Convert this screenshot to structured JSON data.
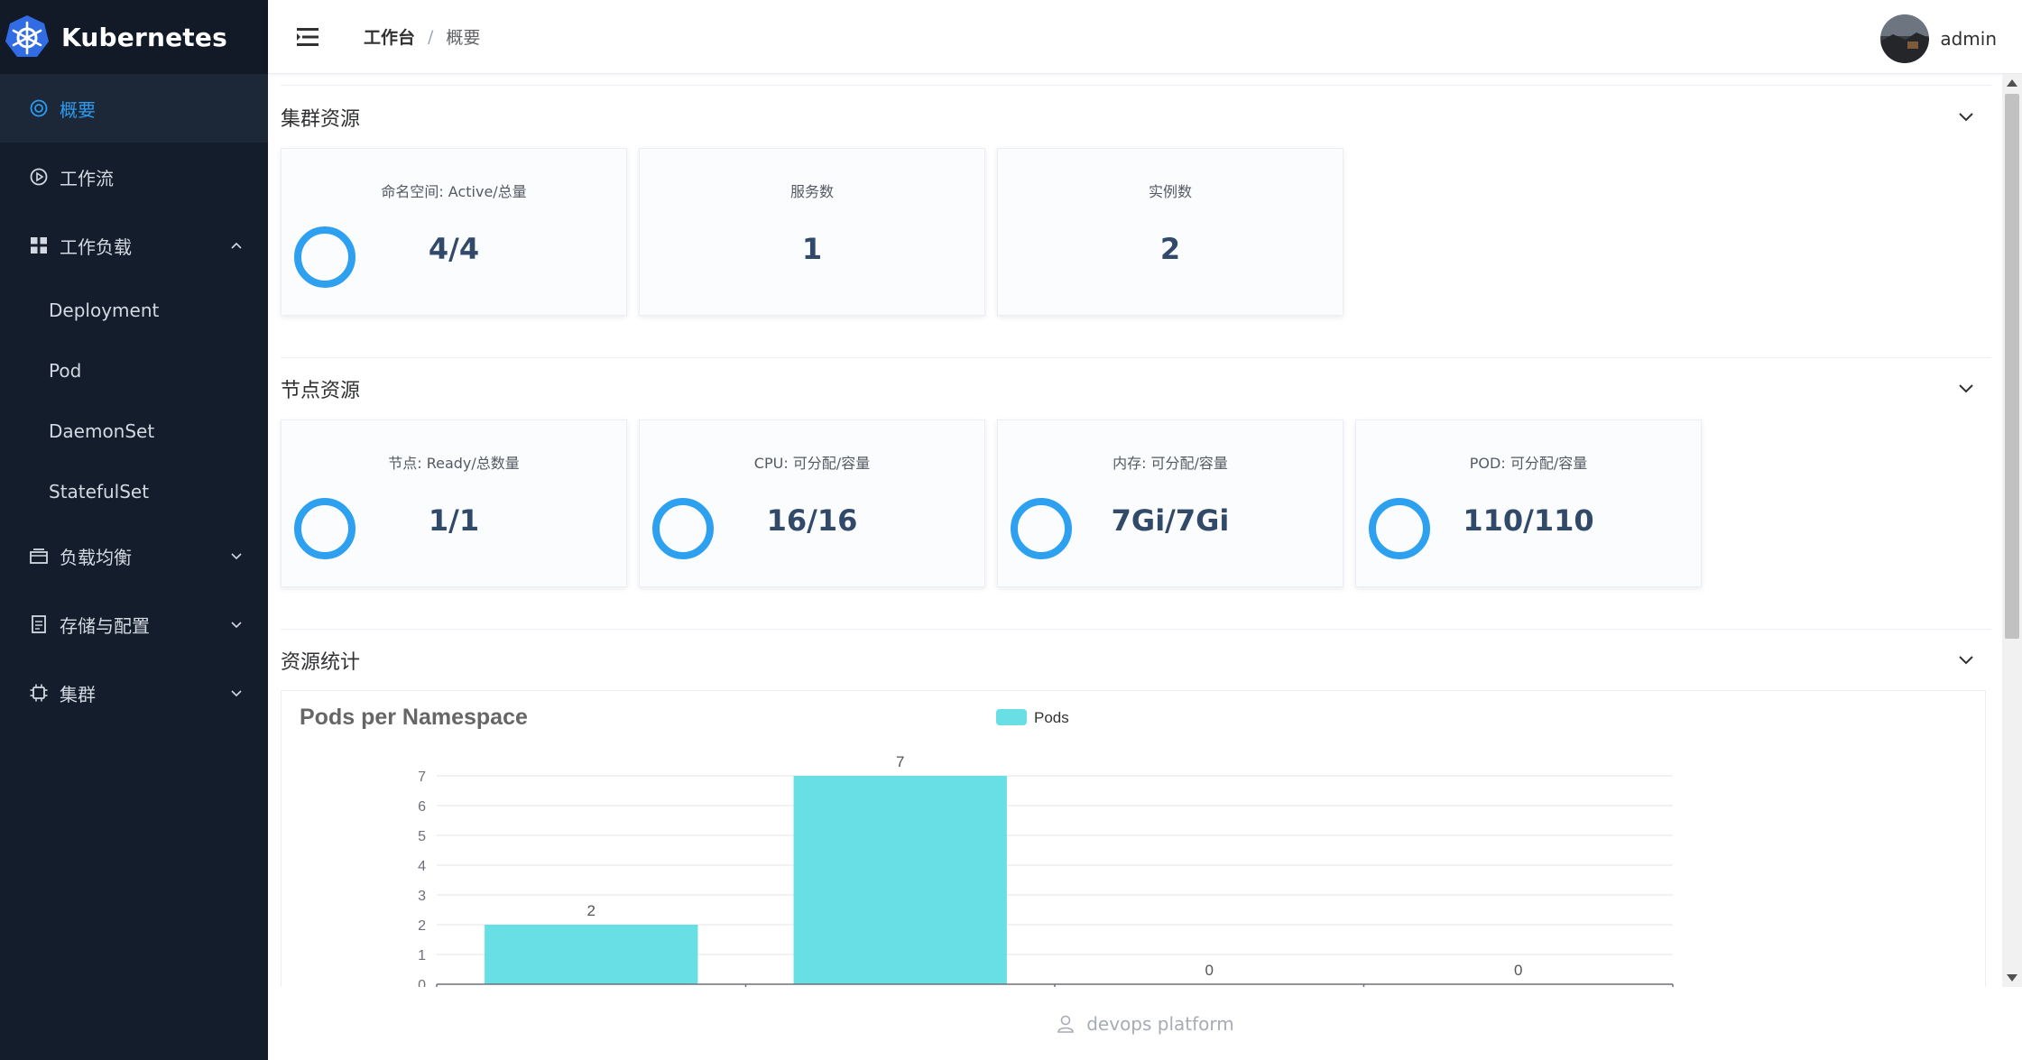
{
  "brand": {
    "title": "Kubernetes"
  },
  "sidebar": {
    "items": [
      {
        "label": "概要",
        "icon": "dashboard-icon",
        "active": true
      },
      {
        "label": "工作流",
        "icon": "play-circle-icon"
      },
      {
        "label": "工作负载",
        "icon": "grid-icon",
        "expanded": true,
        "children": [
          {
            "label": "Deployment"
          },
          {
            "label": "Pod"
          },
          {
            "label": "DaemonSet"
          },
          {
            "label": "StatefulSet"
          }
        ]
      },
      {
        "label": "负载均衡",
        "icon": "layers-icon"
      },
      {
        "label": "存储与配置",
        "icon": "document-icon"
      },
      {
        "label": "集群",
        "icon": "chip-icon"
      }
    ]
  },
  "header": {
    "breadcrumb": {
      "root": "工作台",
      "separator": "/",
      "current": "概要"
    },
    "user": {
      "name": "admin"
    }
  },
  "sections": {
    "cluster": {
      "title": "集群资源",
      "cards": [
        {
          "label": "命名空间: Active/总量",
          "value": "4/4",
          "ring": true
        },
        {
          "label": "服务数",
          "value": "1",
          "ring": false
        },
        {
          "label": "实例数",
          "value": "2",
          "ring": false
        }
      ]
    },
    "nodes": {
      "title": "节点资源",
      "cards": [
        {
          "label": "节点: Ready/总数量",
          "value": "1/1",
          "ring": true
        },
        {
          "label": "CPU: 可分配/容量",
          "value": "16/16",
          "ring": true
        },
        {
          "label": "内存: 可分配/容量",
          "value": "7Gi/7Gi",
          "ring": true
        },
        {
          "label": "POD: 可分配/容量",
          "value": "110/110",
          "ring": true
        }
      ]
    },
    "stats": {
      "title": "资源统计"
    }
  },
  "chart_data": {
    "type": "bar",
    "title": "Pods per Namespace",
    "legend": [
      "Pods"
    ],
    "legend_position": "top-center",
    "series": [
      {
        "name": "Pods",
        "values": [
          2,
          7,
          0,
          0
        ]
      }
    ],
    "values": [
      2,
      7,
      0,
      0
    ],
    "ylim": [
      0,
      7
    ],
    "yticks": [
      0,
      1,
      2,
      3,
      4,
      5,
      6,
      7
    ],
    "grid": true,
    "color": "#67dfe4"
  },
  "footer": {
    "text": "devops platform"
  },
  "colors": {
    "sidebar_bg": "#141d2b",
    "accent": "#2d9bf0",
    "ring": "#2ea0f0",
    "bar": "#67dfe4"
  }
}
